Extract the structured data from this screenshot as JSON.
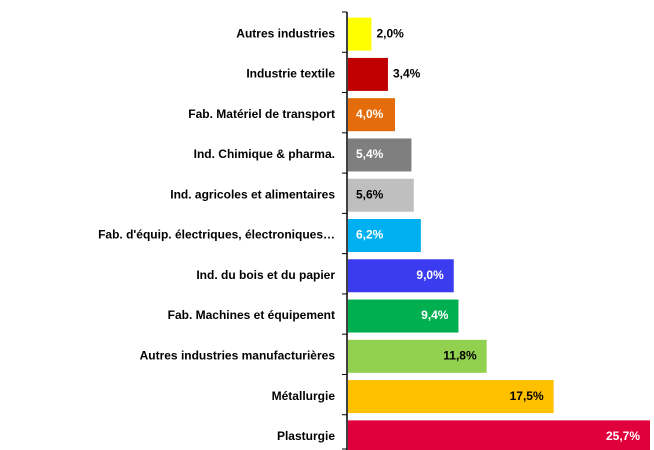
{
  "chart_data": {
    "type": "bar",
    "orientation": "horizontal",
    "categories": [
      "Autres industries",
      "Industrie textile",
      "Fab. Matériel de transport",
      "Ind. Chimique & pharma.",
      "Ind. agricoles et alimentaires",
      "Fab. d'équip. électriques,  électroniques…",
      "Ind. du bois et du papier",
      "Fab. Machines et équipement",
      "Autres industries manufacturières",
      "Métallurgie",
      "Plasturgie"
    ],
    "values": [
      2.0,
      3.4,
      4.0,
      5.4,
      5.6,
      6.2,
      9.0,
      9.4,
      11.8,
      17.5,
      25.7
    ],
    "value_labels": [
      "2,0%",
      "3,4%",
      "4,0%",
      "5,4%",
      "5,6%",
      "6,2%",
      "9,0%",
      "9,4%",
      "11,8%",
      "17,5%",
      "25,7%"
    ],
    "colors": [
      "#ffff00",
      "#c00000",
      "#e46c0a",
      "#7f7f7f",
      "#bfbfbf",
      "#00b0f0",
      "#3b3bf0",
      "#00b050",
      "#92d050",
      "#ffc000",
      "#e0003c"
    ],
    "label_colors": [
      "#000000",
      "#000000",
      "#ffffff",
      "#ffffff",
      "#000000",
      "#ffffff",
      "#ffffff",
      "#ffffff",
      "#000000",
      "#000000",
      "#ffffff"
    ]
  }
}
